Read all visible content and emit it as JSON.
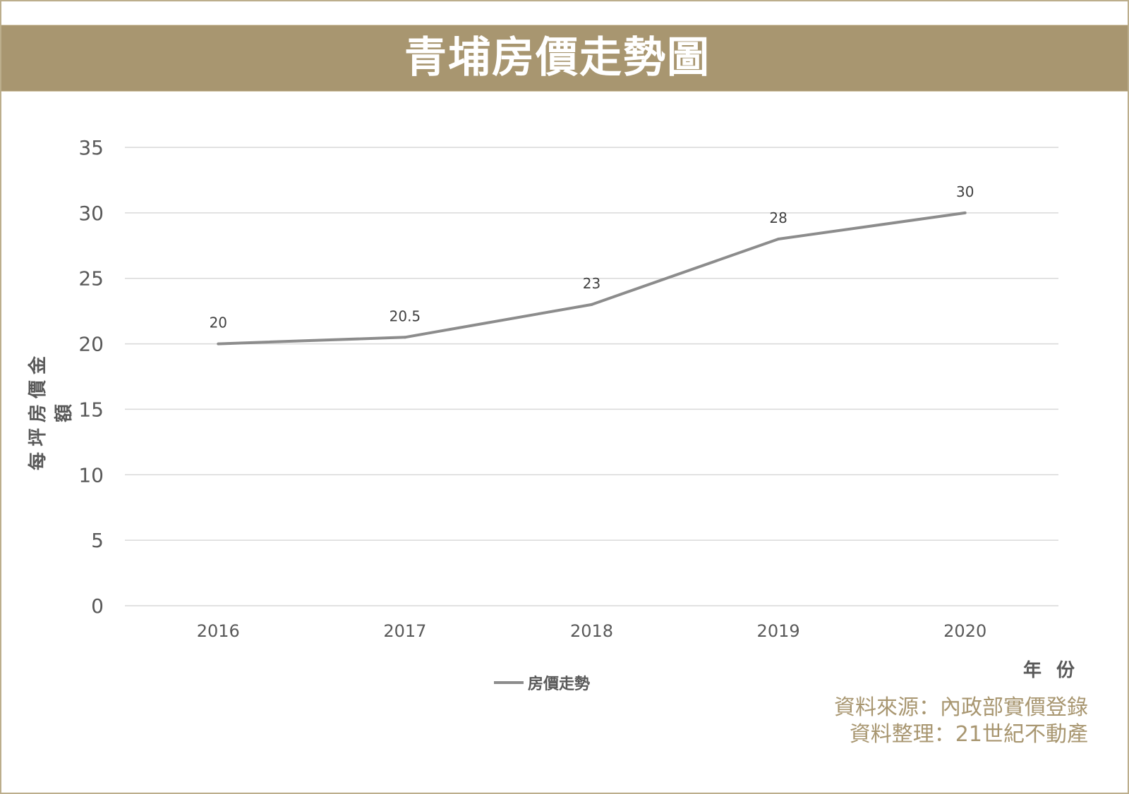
{
  "title": "青埔房價走勢圖",
  "credits": {
    "source": "資料來源：內政部實價登錄",
    "compiled": "資料整理：21世紀不動產"
  },
  "colors": {
    "brand": "#a89670",
    "line": "#8c8c8c",
    "grid": "#d9d9d9"
  },
  "chart_data": {
    "type": "line",
    "title": "青埔房價走勢圖",
    "categories": [
      "2016",
      "2017",
      "2018",
      "2019",
      "2020"
    ],
    "series": [
      {
        "name": "房價走勢",
        "values": [
          20,
          20.5,
          23,
          28,
          30
        ]
      }
    ],
    "data_labels": [
      "20",
      "20.5",
      "23",
      "28",
      "30"
    ],
    "xlabel": "年 份",
    "ylabel": "每坪房價金額",
    "ylim": [
      0,
      35
    ],
    "yticks": [
      "0",
      "5",
      "10",
      "15",
      "20",
      "25",
      "30",
      "35"
    ],
    "grid": true,
    "legend": "bottom"
  }
}
